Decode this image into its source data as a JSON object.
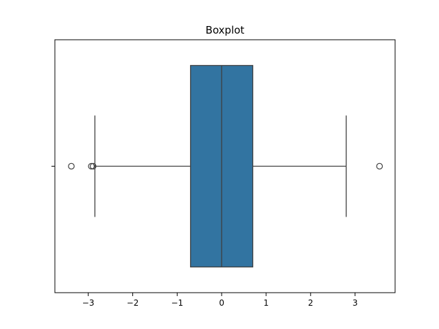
{
  "chart_data": {
    "type": "boxplot",
    "title": "Boxplot",
    "xlabel": "",
    "ylabel": "",
    "orientation": "horizontal",
    "xlim": [
      -3.75,
      3.9
    ],
    "x_ticks": [
      -3,
      -2,
      -1,
      0,
      1,
      2,
      3
    ],
    "x_tick_labels": [
      "−3",
      "−2",
      "−1",
      "0",
      "1",
      "2",
      "3"
    ],
    "grid": false,
    "box": {
      "color": "#3274a1",
      "q1": -0.7,
      "median": 0.0,
      "q3": 0.7,
      "whisker_low": -2.85,
      "whisker_high": 2.8,
      "outliers": [
        -3.38,
        -2.93,
        -2.89,
        3.55
      ]
    }
  }
}
